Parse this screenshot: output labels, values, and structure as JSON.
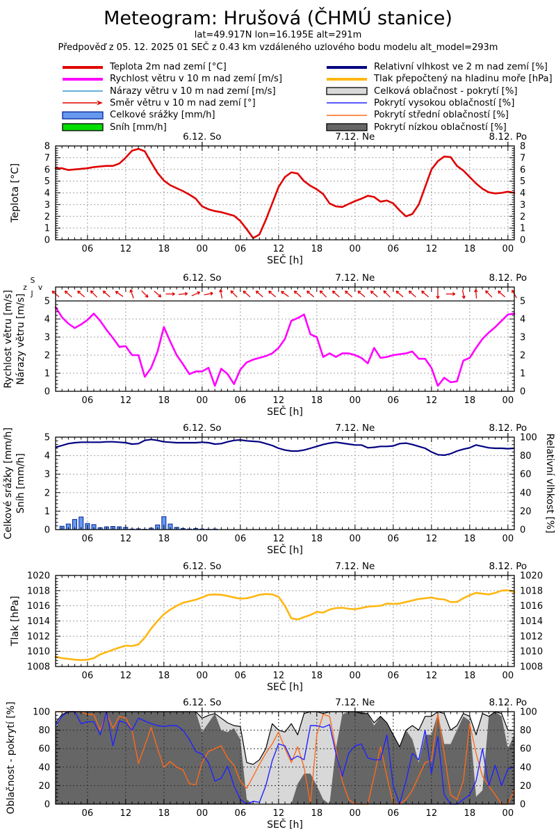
{
  "header": {
    "title": "Meteogram: Hrušová (ČHMÚ stanice)",
    "subtitle_location": "lat=49.917N lon=16.195E alt=291m",
    "subtitle_forecast": "Předpověď z 05. 12. 2025 01 SEČ z 0.43 km vzdáleného uzlového bodu modelu alt_model=293m"
  },
  "colors": {
    "temperature": "#e00000",
    "wind_speed": "#ff00ff",
    "wind_gusts": "#3399cc",
    "wind_direction": "#e00000",
    "precipitation_fill": "#6699ee",
    "precipitation_edge": "#002299",
    "snow": "#00dd00",
    "humidity": "#000080",
    "pressure": "#ffb612",
    "cloud_total_fill": "#d8d8d8",
    "cloud_total_line": "#000000",
    "cloud_high": "#2222ff",
    "cloud_mid": "#ff6a1a",
    "cloud_low_fill": "#666666"
  },
  "legend": {
    "left": [
      {
        "id": "temp",
        "swatch": "line-thick",
        "color_key": "temperature",
        "label": "Teplota 2m nad zemí [°C]"
      },
      {
        "id": "wind-speed",
        "swatch": "line-thick",
        "color_key": "wind_speed",
        "label": "Rychlost větru v 10 m nad zemí [m/s]"
      },
      {
        "id": "wind-gusts",
        "swatch": "line-thin",
        "color_key": "wind_gusts",
        "label": "Nárazy větru v 10 m nad zemí [m/s]"
      },
      {
        "id": "wind-direction",
        "swatch": "arrow",
        "color_key": "wind_direction",
        "label": "Směr větru v 10 m nad zemí [°]"
      },
      {
        "id": "precipitation",
        "swatch": "box",
        "color_key": "precipitation_fill",
        "label": "Celkové srážky [mm/h]"
      },
      {
        "id": "snow",
        "swatch": "box",
        "color_key": "snow",
        "label": "Sníh [mm/h]"
      }
    ],
    "right": [
      {
        "id": "humidity",
        "swatch": "line-thick",
        "color_key": "humidity",
        "label": "Relativní vlhkost ve 2 m nad zemí [%]"
      },
      {
        "id": "pressure",
        "swatch": "line-thick",
        "color_key": "pressure",
        "label": "Tlak přepočtený na hladinu moře [hPa]"
      },
      {
        "id": "cloud-total",
        "swatch": "box",
        "color_key": "cloud_total_fill",
        "label": "Celková oblačnost - pokrytí [%]"
      },
      {
        "id": "cloud-high",
        "swatch": "line-thin",
        "color_key": "cloud_high",
        "label": "Pokrytí vysokou oblačností [%]"
      },
      {
        "id": "cloud-mid",
        "swatch": "line-thin",
        "color_key": "cloud_mid",
        "label": "Pokrytí střední oblačností [%]"
      },
      {
        "id": "cloud-low",
        "swatch": "box",
        "color_key": "cloud_low_fill",
        "label": "Pokrytí nízkou oblačností [%]"
      }
    ]
  },
  "compass": {
    "north": "S",
    "south": "J",
    "east": "v",
    "west": "z"
  },
  "x_axis": {
    "hours_total": 72,
    "start": "5.12. 01:00 SEČ",
    "tick_labels": [
      "06",
      "12",
      "18",
      "00",
      "06",
      "12",
      "18",
      "00",
      "06",
      "12",
      "18",
      "00"
    ],
    "tick_positions_h": [
      5,
      11,
      17,
      23,
      29,
      35,
      41,
      47,
      53,
      59,
      65,
      71
    ],
    "day_labels": [
      {
        "label": "6.12. So",
        "h": 23
      },
      {
        "label": "7.12. Ne",
        "h": 47
      },
      {
        "label": "8.12. Po",
        "h": 71
      }
    ],
    "xlabel": "SEČ [h]"
  },
  "chart_data": [
    {
      "id": "temperature",
      "type": "line",
      "ylabel": "Teplota [°C]",
      "ylim": [
        0,
        8
      ],
      "ytick_step": 1,
      "grid": true,
      "series": [
        {
          "name": "Teplota 2m nad zemí [°C]",
          "color_key": "temperature",
          "step_h": 1,
          "values": [
            6.1,
            6.1,
            5.95,
            6.0,
            6.05,
            6.1,
            6.2,
            6.25,
            6.3,
            6.3,
            6.5,
            7.0,
            7.6,
            7.75,
            7.55,
            6.6,
            5.7,
            5.05,
            4.65,
            4.4,
            4.15,
            3.85,
            3.5,
            2.85,
            2.6,
            2.45,
            2.35,
            2.2,
            2.05,
            1.6,
            0.9,
            0.15,
            0.45,
            1.7,
            3.1,
            4.5,
            5.35,
            5.75,
            5.65,
            5.0,
            4.6,
            4.3,
            3.9,
            3.1,
            2.85,
            2.8,
            3.05,
            3.3,
            3.5,
            3.75,
            3.65,
            3.25,
            3.35,
            3.1,
            2.5,
            2.0,
            2.2,
            3.0,
            4.5,
            6.0,
            6.7,
            7.1,
            7.05,
            6.3,
            5.9,
            5.35,
            4.8,
            4.35,
            4.05,
            3.95,
            4.0,
            4.1,
            4.0
          ]
        }
      ]
    },
    {
      "id": "wind",
      "type": "line-arrows",
      "ylabels": [
        "Rychlost větru [m/s]",
        "Nárazy větru [m/s]"
      ],
      "ylim": [
        0,
        5
      ],
      "ytick_step": 1,
      "grid": true,
      "series": [
        {
          "name": "Rychlost větru v 10 m nad zemí [m/s]",
          "color_key": "wind_speed",
          "step_h": 1,
          "values": [
            4.65,
            4.1,
            3.75,
            3.5,
            3.7,
            3.95,
            4.3,
            3.9,
            3.4,
            2.95,
            2.45,
            2.5,
            2.0,
            2.0,
            0.8,
            1.3,
            2.2,
            3.55,
            2.75,
            2.0,
            1.5,
            0.95,
            1.1,
            1.1,
            1.3,
            0.3,
            1.25,
            0.95,
            0.4,
            1.2,
            1.6,
            1.75,
            1.85,
            1.95,
            2.1,
            2.4,
            2.9,
            3.9,
            4.05,
            4.25,
            3.15,
            3.0,
            1.9,
            2.1,
            1.9,
            2.1,
            2.1,
            2.0,
            1.85,
            1.55,
            2.4,
            1.85,
            1.9,
            2.0,
            2.05,
            2.1,
            2.2,
            1.8,
            1.8,
            1.3,
            0.3,
            0.75,
            0.5,
            0.55,
            1.7,
            1.85,
            2.4,
            2.9,
            3.25,
            3.55,
            3.9,
            4.25,
            4.3
          ]
        }
      ],
      "wind_arrows": {
        "name": "Směr větru v 10 m nad zemí [°]",
        "color_key": "wind_direction",
        "step_h": 2,
        "angles_deg": [
          140,
          140,
          140,
          135,
          140,
          145,
          110,
          315,
          320,
          0,
          5,
          25,
          10,
          100,
          135,
          140,
          140,
          140,
          145,
          140,
          140,
          135,
          140,
          140,
          140,
          140,
          135,
          140,
          140,
          140,
          270,
          0,
          280,
          95,
          135,
          140,
          120
        ]
      }
    },
    {
      "id": "precip",
      "type": "bars-line",
      "ylabels": [
        "Celkové srážky [mm/h]",
        "Sníh [mm/h]"
      ],
      "ylim": [
        0,
        5
      ],
      "ytick_step": 1,
      "ylabel_right": "Relativní vlhkost [%]",
      "ylim_right": [
        0,
        100
      ],
      "ytick_step_right": 20,
      "grid": true,
      "bars": {
        "name": "Celkové srážky [mm/h]",
        "color_key": "precipitation_fill",
        "edge_key": "precipitation_edge",
        "step_h": 1,
        "values": [
          0,
          0.18,
          0.3,
          0.55,
          0.68,
          0.33,
          0.27,
          0.1,
          0.15,
          0.17,
          0.15,
          0.12,
          0.03,
          0.04,
          0.02,
          0.08,
          0.25,
          0.7,
          0.3,
          0.12,
          0.06,
          0.03,
          0.06,
          0.03,
          0.02,
          0.03,
          0,
          0,
          0,
          0,
          0,
          0,
          0,
          0,
          0,
          0,
          0,
          0,
          0,
          0,
          0,
          0,
          0,
          0,
          0,
          0,
          0,
          0,
          0,
          0,
          0,
          0,
          0,
          0,
          0,
          0,
          0,
          0,
          0,
          0,
          0,
          0,
          0,
          0,
          0,
          0,
          0,
          0,
          0,
          0,
          0,
          0,
          0
        ]
      },
      "line": {
        "name": "Relativní vlhkost ve 2 m nad zemí [%]",
        "color_key": "humidity",
        "axis": "right",
        "step_h": 1,
        "values": [
          89,
          91,
          93,
          94,
          94.5,
          94.5,
          94.5,
          94.5,
          95,
          95,
          94.5,
          94,
          92.5,
          93,
          96.5,
          97.5,
          96.5,
          95,
          94.5,
          94,
          94,
          94,
          94,
          94.5,
          94,
          92.5,
          93,
          95,
          96.5,
          97,
          96,
          95.5,
          95,
          93,
          91,
          88,
          86,
          85,
          85,
          86,
          88,
          90,
          92,
          93.5,
          94.5,
          93.5,
          92.5,
          91.5,
          91.5,
          88.5,
          89,
          90,
          90,
          90.5,
          93,
          93.5,
          92,
          90,
          88,
          84,
          81,
          80.5,
          82,
          85,
          87,
          88.5,
          91.5,
          90,
          88.5,
          88,
          88,
          87.5,
          88
        ]
      }
    },
    {
      "id": "pressure",
      "type": "line",
      "ylabel": "Tlak [hPa]",
      "ylim": [
        1008,
        1020
      ],
      "ytick_step": 2,
      "grid": true,
      "series": [
        {
          "name": "Tlak přepočtený na hladinu moře [hPa]",
          "color_key": "pressure",
          "step_h": 1,
          "values": [
            1009.3,
            1009.1,
            1009.0,
            1008.9,
            1008.85,
            1008.9,
            1009.1,
            1009.6,
            1009.9,
            1010.2,
            1010.5,
            1010.75,
            1010.7,
            1010.9,
            1011.8,
            1013.0,
            1014.0,
            1014.9,
            1015.5,
            1016.0,
            1016.4,
            1016.6,
            1016.8,
            1017.1,
            1017.45,
            1017.5,
            1017.45,
            1017.3,
            1017.1,
            1016.95,
            1017.0,
            1017.2,
            1017.45,
            1017.55,
            1017.5,
            1017.2,
            1016.0,
            1014.35,
            1014.2,
            1014.5,
            1014.8,
            1015.2,
            1015.1,
            1015.5,
            1015.7,
            1015.75,
            1015.6,
            1015.55,
            1015.7,
            1015.9,
            1015.95,
            1016.0,
            1016.3,
            1016.25,
            1016.3,
            1016.5,
            1016.7,
            1016.9,
            1017.0,
            1017.1,
            1016.9,
            1016.85,
            1016.5,
            1016.5,
            1017.0,
            1017.4,
            1017.7,
            1017.6,
            1017.5,
            1017.7,
            1018.0,
            1018.05,
            1017.8
          ]
        }
      ]
    },
    {
      "id": "clouds",
      "type": "cloud",
      "ylabel": "Oblačnost - pokrytí [%]",
      "ylim": [
        0,
        100
      ],
      "ytick_step": 20,
      "grid": true,
      "areas": [
        {
          "name": "Celková oblačnost - pokrytí [%]",
          "fill_key": "cloud_total_fill",
          "line_key": "cloud_total_line",
          "step_h": 1,
          "values": [
            88,
            97,
            100,
            100,
            100,
            100,
            100,
            100,
            100,
            100,
            100,
            100,
            100,
            100,
            100,
            100,
            100,
            100,
            100,
            100,
            100,
            100,
            100,
            93,
            96,
            98,
            93,
            88,
            85,
            84,
            45,
            43,
            48,
            60,
            87,
            80,
            78,
            87,
            75,
            98,
            100,
            100,
            98,
            100,
            100,
            100,
            100,
            100,
            98,
            98,
            88,
            95,
            88,
            75,
            62,
            80,
            85,
            80,
            95,
            95,
            100,
            98,
            80,
            85,
            98,
            95,
            75,
            98,
            95,
            100,
            98,
            80,
            80
          ]
        },
        {
          "name": "Pokrytí nízkou oblačností [%]",
          "fill_key": "cloud_low_fill",
          "step_h": 1,
          "values": [
            82,
            97,
            100,
            100,
            100,
            100,
            100,
            100,
            100,
            100,
            100,
            100,
            100,
            100,
            100,
            100,
            100,
            100,
            100,
            100,
            100,
            100,
            100,
            78,
            88,
            98,
            80,
            78,
            82,
            70,
            5,
            0,
            0,
            0,
            0,
            0,
            0,
            0,
            22,
            33,
            33,
            20,
            5,
            0,
            60,
            97,
            100,
            100,
            100,
            98,
            85,
            95,
            88,
            75,
            62,
            80,
            70,
            45,
            75,
            75,
            98,
            65,
            65,
            80,
            95,
            90,
            8,
            15,
            95,
            100,
            95,
            60,
            75
          ]
        }
      ],
      "lines": [
        {
          "name": "Pokrytí střední oblačností [%]",
          "color_key": "cloud_mid",
          "step_h": 1,
          "values": [
            100,
            100,
            100,
            100,
            100,
            97,
            97,
            80,
            98,
            82,
            95,
            93,
            80,
            44,
            63,
            83,
            60,
            40,
            46,
            40,
            37,
            22,
            21,
            45,
            57,
            60,
            63,
            50,
            42,
            25,
            17,
            30,
            43,
            55,
            65,
            78,
            60,
            45,
            62,
            40,
            0,
            75,
            97,
            95,
            60,
            25,
            5,
            0,
            0,
            0,
            30,
            62,
            30,
            0,
            0,
            5,
            15,
            30,
            45,
            47,
            98,
            55,
            10,
            5,
            25,
            87,
            55,
            30,
            20,
            10,
            0,
            0,
            15
          ]
        },
        {
          "name": "Pokrytí vysokou oblačností [%]",
          "color_key": "cloud_high",
          "step_h": 1,
          "values": [
            85,
            95,
            100,
            100,
            87,
            89,
            89,
            75,
            100,
            63,
            90,
            88,
            80,
            93,
            90,
            87,
            85,
            84,
            85,
            85,
            80,
            70,
            57,
            54,
            45,
            25,
            28,
            41,
            20,
            5,
            0,
            3,
            2,
            20,
            47,
            65,
            63,
            48,
            52,
            48,
            85,
            85,
            83,
            86,
            55,
            30,
            55,
            63,
            65,
            50,
            48,
            48,
            75,
            20,
            0,
            25,
            55,
            48,
            80,
            33,
            73,
            10,
            0,
            0,
            5,
            10,
            25,
            60,
            20,
            42,
            20,
            38,
            40
          ]
        }
      ]
    }
  ]
}
